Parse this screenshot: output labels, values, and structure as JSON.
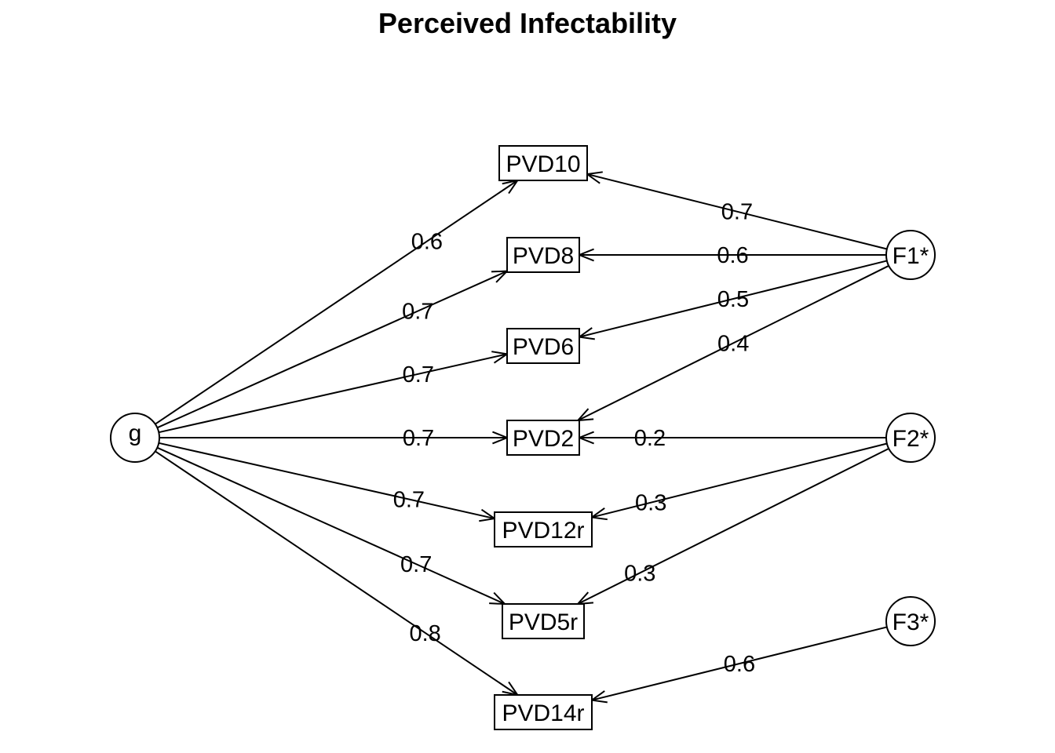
{
  "title": "Perceived Infectability",
  "factors": [
    {
      "id": "g",
      "label": "g"
    },
    {
      "id": "F1",
      "label": "F1*"
    },
    {
      "id": "F2",
      "label": "F2*"
    },
    {
      "id": "F3",
      "label": "F3*"
    }
  ],
  "items": [
    {
      "id": "PVD10",
      "label": "PVD10"
    },
    {
      "id": "PVD8",
      "label": "PVD8"
    },
    {
      "id": "PVD6",
      "label": "PVD6"
    },
    {
      "id": "PVD2",
      "label": "PVD2"
    },
    {
      "id": "PVD12r",
      "label": "PVD12r"
    },
    {
      "id": "PVD5r",
      "label": "PVD5r"
    },
    {
      "id": "PVD14r",
      "label": "PVD14r"
    }
  ],
  "loadings": [
    {
      "from": "g",
      "to": "PVD10",
      "value": "0.6"
    },
    {
      "from": "g",
      "to": "PVD8",
      "value": "0.7"
    },
    {
      "from": "g",
      "to": "PVD6",
      "value": "0.7"
    },
    {
      "from": "g",
      "to": "PVD2",
      "value": "0.7"
    },
    {
      "from": "g",
      "to": "PVD12r",
      "value": "0.7"
    },
    {
      "from": "g",
      "to": "PVD5r",
      "value": "0.7"
    },
    {
      "from": "g",
      "to": "PVD14r",
      "value": "0.8"
    },
    {
      "from": "F1",
      "to": "PVD10",
      "value": "0.7"
    },
    {
      "from": "F1",
      "to": "PVD8",
      "value": "0.6"
    },
    {
      "from": "F1",
      "to": "PVD6",
      "value": "0.5"
    },
    {
      "from": "F1",
      "to": "PVD2",
      "value": "0.4"
    },
    {
      "from": "F2",
      "to": "PVD2",
      "value": "0.2"
    },
    {
      "from": "F2",
      "to": "PVD12r",
      "value": "0.3"
    },
    {
      "from": "F2",
      "to": "PVD5r",
      "value": "0.3"
    },
    {
      "from": "F3",
      "to": "PVD14r",
      "value": "0.6"
    }
  ]
}
